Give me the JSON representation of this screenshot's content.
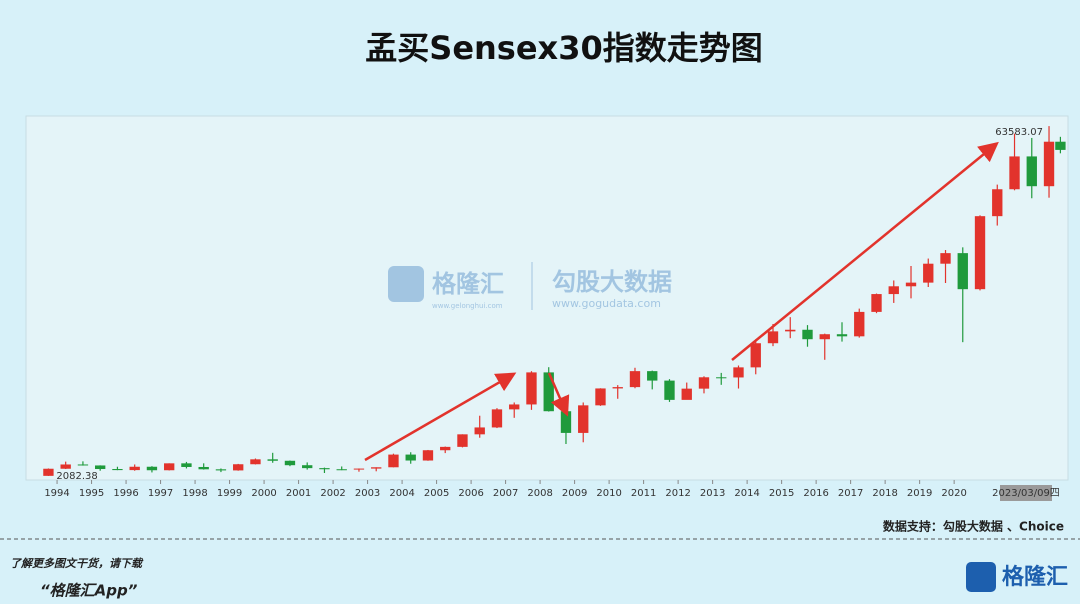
{
  "chart_data": {
    "type": "candlestick",
    "title": "孟买Sensex30指数走势图",
    "x": [
      1993.75,
      1994.25,
      1994.75,
      1995.25,
      1995.75,
      1996.25,
      1996.75,
      1997.25,
      1997.75,
      1998.25,
      1998.75,
      1999.25,
      1999.75,
      2000.25,
      2000.75,
      2001.25,
      2001.75,
      2002.25,
      2002.75,
      2003.25,
      2003.75,
      2004.25,
      2004.75,
      2005.25,
      2005.75,
      2006.25,
      2006.75,
      2007.25,
      2007.75,
      2008.25,
      2008.75,
      2009.25,
      2009.75,
      2010.25,
      2010.75,
      2011.25,
      2011.75,
      2012.25,
      2012.75,
      2013.25,
      2013.75,
      2014.25,
      2014.75,
      2015.25,
      2015.75,
      2016.25,
      2016.75,
      2017.25,
      2017.75,
      2018.25,
      2018.75,
      2019.25,
      2019.75,
      2020.25,
      2020.75,
      2021.25,
      2021.75,
      2022.25,
      2022.75,
      2023.08
    ],
    "open": [
      2100,
      3350,
      4100,
      3926,
      3300,
      3110,
      3700,
      3085,
      4300,
      3659,
      3250,
      3055,
      4140,
      5005,
      4750,
      3972,
      3456,
      3262,
      3245,
      3377,
      3607,
      5839,
      4795,
      6603,
      7194,
      9398,
      10609,
      13787,
      14651,
      20287,
      13461,
      9647,
      14494,
      17465,
      17700,
      20509,
      18845,
      15455,
      17430,
      19427,
      19396,
      21171,
      25414,
      27499,
      27781,
      26118,
      26999,
      26626,
      30922,
      34057,
      35423,
      36068,
      39395,
      41254,
      34916,
      47751,
      52483,
      58254,
      53019,
      60840
    ],
    "high": [
      3400,
      4600,
      4650,
      3950,
      3700,
      4100,
      3800,
      4300,
      4550,
      4300,
      3400,
      4200,
      5150,
      6150,
      4800,
      4460,
      3550,
      3750,
      3400,
      3600,
      6000,
      6250,
      6650,
      7250,
      9400,
      12670,
      14000,
      15000,
      20500,
      21200,
      15500,
      15000,
      17500,
      18050,
      21100,
      20600,
      19100,
      18500,
      19600,
      20200,
      21500,
      26100,
      28800,
      30000,
      28600,
      27100,
      29100,
      31500,
      34150,
      36450,
      38990,
      40300,
      41800,
      42270,
      47900,
      53300,
      62250,
      61500,
      63583.07,
      61700
    ],
    "low": [
      2082.38,
      3300,
      3900,
      3000,
      3100,
      3000,
      2700,
      3050,
      3400,
      3200,
      2760,
      3000,
      4100,
      4400,
      3800,
      3200,
      2600,
      3100,
      2830,
      2900,
      3600,
      4230,
      4750,
      6100,
      7100,
      8800,
      10500,
      12300,
      13700,
      13400,
      7700,
      8000,
      14400,
      15650,
      17500,
      17300,
      15100,
      15700,
      16600,
      18100,
      17450,
      19950,
      24900,
      26300,
      24800,
      22500,
      25700,
      26400,
      30700,
      32500,
      33300,
      35300,
      36000,
      25600,
      34700,
      46100,
      52300,
      50900,
      51000,
      58800
    ],
    "close": [
      3350,
      4100,
      3926,
      3300,
      3110,
      3700,
      3085,
      4300,
      3659,
      3250,
      3055,
      4140,
      5005,
      4750,
      3972,
      3456,
      3262,
      3245,
      3377,
      3607,
      5839,
      4795,
      6603,
      7194,
      9398,
      10609,
      13787,
      14651,
      20287,
      13461,
      9647,
      14494,
      17465,
      17700,
      20509,
      18845,
      15455,
      17430,
      19427,
      19396,
      21171,
      25414,
      27499,
      27781,
      26118,
      26999,
      26626,
      30922,
      34057,
      35423,
      36068,
      39395,
      41254,
      34916,
      47751,
      52483,
      58254,
      53019,
      60840,
      59400
    ],
    "up_color": "#e2332c",
    "down_color": "#1f9a3c",
    "xlim": [
      1993.1,
      2023.3
    ],
    "ylim": [
      1370,
      65360
    ],
    "xticks": [
      1994,
      1995,
      1996,
      1997,
      1998,
      1999,
      2000,
      2001,
      2002,
      2003,
      2004,
      2005,
      2006,
      2007,
      2008,
      2009,
      2010,
      2011,
      2012,
      2013,
      2014,
      2015,
      2016,
      2017,
      2018,
      2019,
      2020
    ],
    "cursor_label": "2023/03/09四"
  },
  "watermark": {
    "brand": "格隆汇",
    "brand_url": "www.gelonghui.com",
    "partner": "勾股大数据",
    "partner_url": "www.gogudata.com"
  },
  "source": "数据支持：勾股大数据 、Choice",
  "footer": {
    "line1": "了解更多图文干货，请下载",
    "line2": "“格隆汇App”",
    "logo": "格隆汇"
  }
}
